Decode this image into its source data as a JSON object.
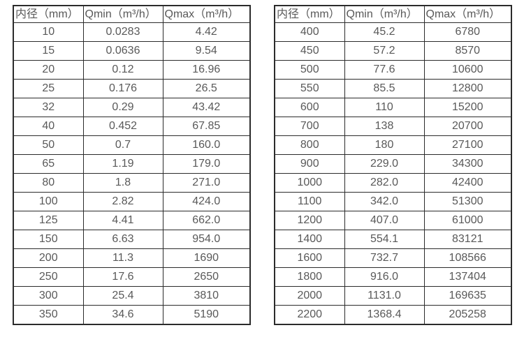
{
  "colors": {
    "border": "#2b2b2b",
    "text": "#595959",
    "background": "#ffffff"
  },
  "left_table": {
    "headers": [
      "内径（mm）",
      "Qmin（m³/h）",
      "Qmax（m³/h）"
    ],
    "rows": [
      [
        "10",
        "0.0283",
        "4.42"
      ],
      [
        "15",
        "0.0636",
        "9.54"
      ],
      [
        "20",
        "0.12",
        "16.96"
      ],
      [
        "25",
        "0.176",
        "26.5"
      ],
      [
        "32",
        "0.29",
        "43.42"
      ],
      [
        "40",
        "0.452",
        "67.85"
      ],
      [
        "50",
        "0.7",
        "160.0"
      ],
      [
        "65",
        "1.19",
        "179.0"
      ],
      [
        "80",
        "1.8",
        "271.0"
      ],
      [
        "100",
        "2.82",
        "424.0"
      ],
      [
        "125",
        "4.41",
        "662.0"
      ],
      [
        "150",
        "6.63",
        "954.0"
      ],
      [
        "200",
        "11.3",
        "1690"
      ],
      [
        "250",
        "17.6",
        "2650"
      ],
      [
        "300",
        "25.4",
        "3810"
      ],
      [
        "350",
        "34.6",
        "5190"
      ]
    ]
  },
  "right_table": {
    "headers": [
      "内径（mm）",
      "Qmin（m³/h）",
      "Qmax（m³/h）"
    ],
    "rows": [
      [
        "400",
        "45.2",
        "6780"
      ],
      [
        "450",
        "57.2",
        "8570"
      ],
      [
        "500",
        "77.6",
        "10600"
      ],
      [
        "550",
        "85.5",
        "12800"
      ],
      [
        "600",
        "110",
        "15200"
      ],
      [
        "700",
        "138",
        "20700"
      ],
      [
        "800",
        "180",
        "27100"
      ],
      [
        "900",
        "229.0",
        "34300"
      ],
      [
        "1000",
        "282.0",
        "42400"
      ],
      [
        "1100",
        "342.0",
        "51300"
      ],
      [
        "1200",
        "407.0",
        "61000"
      ],
      [
        "1400",
        "554.1",
        "83121"
      ],
      [
        "1600",
        "732.7",
        "108566"
      ],
      [
        "1800",
        "916.0",
        "137404"
      ],
      [
        "2000",
        "1131.0",
        "169635"
      ],
      [
        "2200",
        "1368.4",
        "205258"
      ]
    ]
  }
}
